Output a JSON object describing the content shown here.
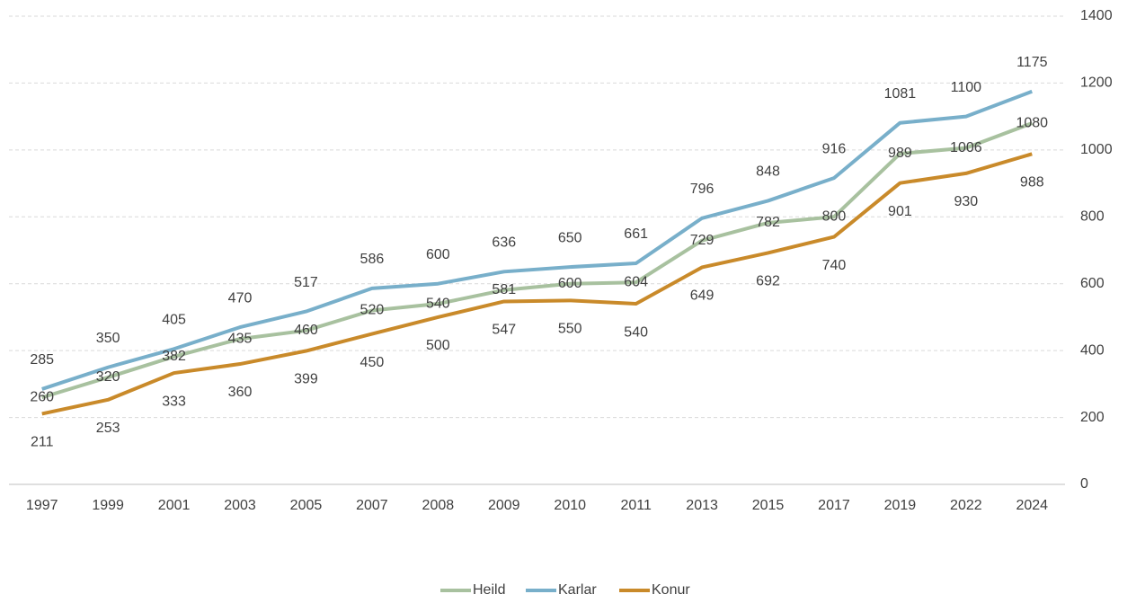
{
  "chart_data": {
    "type": "line",
    "categories": [
      "1997",
      "1999",
      "2001",
      "2003",
      "2005",
      "2007",
      "2008",
      "2009",
      "2010",
      "2011",
      "2013",
      "2015",
      "2017",
      "2019",
      "2022",
      "2024"
    ],
    "series": [
      {
        "name": "Heild",
        "color": "#a8c19f",
        "values": [
          260,
          320,
          382,
          435,
          460,
          520,
          540,
          581,
          600,
          604,
          729,
          782,
          800,
          989,
          1006,
          1080
        ]
      },
      {
        "name": "Karlar",
        "color": "#78afca",
        "values": [
          285,
          350,
          405,
          470,
          517,
          586,
          600,
          636,
          650,
          661,
          796,
          848,
          916,
          1081,
          1100,
          1175
        ]
      },
      {
        "name": "Konur",
        "color": "#c98a2a",
        "values": [
          211,
          253,
          333,
          360,
          399,
          450,
          500,
          547,
          550,
          540,
          649,
          692,
          740,
          901,
          930,
          988
        ]
      }
    ],
    "ylim": [
      0,
      1400
    ],
    "yticks": [
      0,
      200,
      400,
      600,
      800,
      1000,
      1200,
      1400
    ],
    "grid": true,
    "legend": "bottom"
  }
}
